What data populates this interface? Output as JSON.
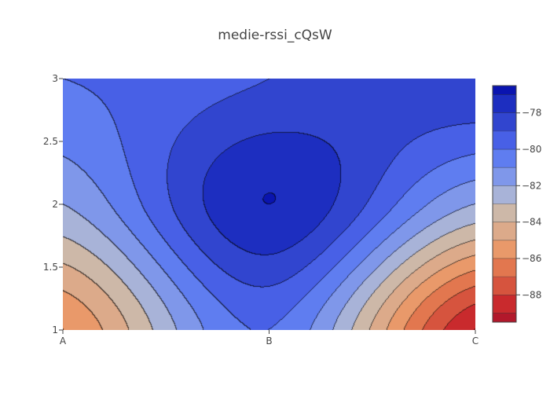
{
  "chart_data": {
    "type": "contour",
    "title": "medie-rssi_cQsW",
    "x_categories": [
      "A",
      "B",
      "C"
    ],
    "y_ticks": [
      "1",
      "1.5",
      "2",
      "2.5",
      "3"
    ],
    "ylim": [
      1,
      3
    ],
    "z": [
      [
        -86,
        -80,
        -89
      ],
      [
        -82,
        -77,
        -82
      ],
      [
        -80,
        -79,
        -78
      ]
    ],
    "colorbar": {
      "ticks": [
        "-78",
        "-80",
        "-82",
        "-84",
        "-86",
        "-88"
      ],
      "levels": [
        -89,
        -88,
        -87,
        -86,
        -85,
        -84,
        -83,
        -82,
        -81,
        -80,
        -79,
        -78,
        -77
      ],
      "colors": [
        "#b2182b",
        "#c92a2d",
        "#d6543e",
        "#e2774f",
        "#e9996a",
        "#dcaa8a",
        "#cdb8a8",
        "#a8b3d8",
        "#7f97ea",
        "#5f7df0",
        "#4860e6",
        "#3145cf",
        "#1d2ec0",
        "#0a14b0"
      ]
    },
    "interpolation": "bicubic",
    "grid": false,
    "legend": "colorbar-right"
  }
}
